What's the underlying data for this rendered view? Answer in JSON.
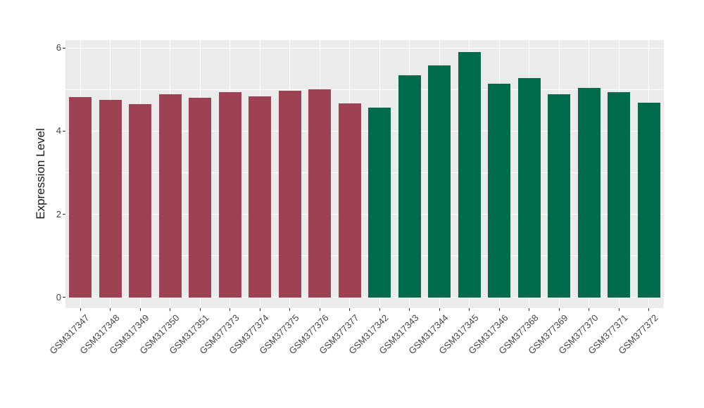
{
  "chart_data": {
    "type": "bar",
    "title": "",
    "xlabel": "",
    "ylabel": "Expression Level",
    "ylim": [
      0,
      6.2
    ],
    "yticks": [
      0,
      2,
      4,
      6
    ],
    "minor_yticks": [
      1,
      3,
      5
    ],
    "grid": true,
    "legend_position": "none",
    "panel_background": "#EBEBEB",
    "gridline_color": "#FFFFFF",
    "axis_text_color": "#454545",
    "group_colors": {
      "left": "#9C4253",
      "right": "#006B4C"
    },
    "categories": [
      "GSM317347",
      "GSM317348",
      "GSM317349",
      "GSM317350",
      "GSM317351",
      "GSM377373",
      "GSM377374",
      "GSM377375",
      "GSM377376",
      "GSM377377",
      "GSM317342",
      "GSM317343",
      "GSM317344",
      "GSM317345",
      "GSM317346",
      "GSM377368",
      "GSM377369",
      "GSM377370",
      "GSM377371",
      "GSM377372"
    ],
    "values": [
      4.82,
      4.76,
      4.65,
      4.88,
      4.81,
      4.93,
      4.84,
      4.98,
      5.0,
      4.66,
      4.56,
      5.35,
      5.58,
      5.9,
      5.14,
      5.28,
      4.89,
      5.04,
      4.93,
      4.68
    ],
    "bar_groups": [
      "left",
      "left",
      "left",
      "left",
      "left",
      "left",
      "left",
      "left",
      "left",
      "left",
      "right",
      "right",
      "right",
      "right",
      "right",
      "right",
      "right",
      "right",
      "right",
      "right"
    ]
  }
}
